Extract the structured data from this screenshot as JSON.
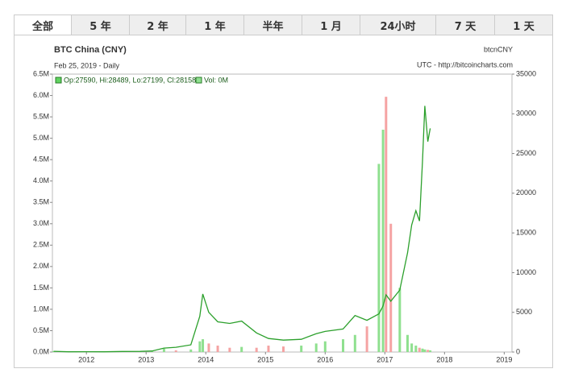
{
  "tabs": [
    "全部",
    "5 年",
    "2 年",
    "1 年",
    "半年",
    "1 月",
    "24小时",
    "7 天",
    "1 天"
  ],
  "chart_data": {
    "type": "price-volume",
    "title": "BTC China (CNY)",
    "subtitle": "Feb 25, 2019 - Daily",
    "symbol": "btcnCNY",
    "source": "UTC - http://bitcoincharts.com",
    "ohlc_legend": "Op:27590, Hi:28489, Lo:27199, Cl:28158",
    "volume_legend": "Vol: 0M",
    "x": [
      2011.45,
      2011.7,
      2012.0,
      2012.3,
      2012.6,
      2012.9,
      2013.1,
      2013.3,
      2013.5,
      2013.75,
      2013.9,
      2013.95,
      2014.05,
      2014.2,
      2014.4,
      2014.6,
      2014.85,
      2015.05,
      2015.3,
      2015.6,
      2015.85,
      2016.0,
      2016.3,
      2016.5,
      2016.7,
      2016.9,
      2016.97,
      2017.02,
      2017.1,
      2017.25,
      2017.38,
      2017.45,
      2017.52,
      2017.58,
      2017.63,
      2017.67,
      2017.72,
      2017.76
    ],
    "price": {
      "color": "#2ca02c",
      "axis": "y2",
      "values": [
        90,
        30,
        40,
        35,
        70,
        80,
        130,
        500,
        600,
        900,
        4500,
        7300,
        5000,
        3800,
        3600,
        3900,
        2400,
        1700,
        1500,
        1600,
        2300,
        2600,
        2900,
        4600,
        4000,
        4800,
        5800,
        7200,
        6400,
        7800,
        12500,
        16000,
        17800,
        16500,
        24000,
        31000,
        26500,
        28158
      ]
    },
    "volume": {
      "values": [
        20000,
        10000,
        5000,
        8000,
        10000,
        15000,
        20000,
        80000,
        40000,
        60000,
        250000,
        300000,
        200000,
        150000,
        100000,
        120000,
        100000,
        150000,
        130000,
        150000,
        200000,
        250000,
        300000,
        400000,
        600000,
        4400000,
        5200000,
        5970000,
        3000000,
        1500000,
        400000,
        200000,
        150000,
        100000,
        80000,
        60000,
        50000,
        40000
      ],
      "colors": [
        "#8fe08f",
        "#f5a3a3",
        "#8fe08f",
        "#f5a3a3",
        "#8fe08f",
        "#8fe08f",
        "#8fe08f",
        "#8fe08f",
        "#f5a3a3",
        "#8fe08f",
        "#8fe08f",
        "#8fe08f",
        "#f5a3a3",
        "#f5a3a3",
        "#f5a3a3",
        "#8fe08f",
        "#f5a3a3",
        "#f5a3a3",
        "#f5a3a3",
        "#8fe08f",
        "#8fe08f",
        "#8fe08f",
        "#8fe08f",
        "#8fe08f",
        "#f5a3a3",
        "#8fe08f",
        "#8fe08f",
        "#f5a3a3",
        "#f5a3a3",
        "#8fe08f",
        "#8fe08f",
        "#8fe08f",
        "#8fe08f",
        "#f5a3a3",
        "#8fe08f",
        "#8fe08f",
        "#f5a3a3",
        "#8fe08f"
      ]
    },
    "xlim": [
      2011.43,
      2019.13
    ],
    "xticks": [
      2012,
      2013,
      2014,
      2015,
      2016,
      2017,
      2018,
      2019
    ],
    "ylim": [
      0,
      6500000
    ],
    "yticks": [
      {
        "value": 0,
        "label": "0.0M"
      },
      {
        "value": 500000,
        "label": "0.5M"
      },
      {
        "value": 1000000,
        "label": "1.0M"
      },
      {
        "value": 1500000,
        "label": "1.5M"
      },
      {
        "value": 2000000,
        "label": "2.0M"
      },
      {
        "value": 2500000,
        "label": "2.5M"
      },
      {
        "value": 3000000,
        "label": "3.0M"
      },
      {
        "value": 3500000,
        "label": "3.5M"
      },
      {
        "value": 4000000,
        "label": "4.0M"
      },
      {
        "value": 4500000,
        "label": "4.5M"
      },
      {
        "value": 5000000,
        "label": "5.0M"
      },
      {
        "value": 5500000,
        "label": "5.5M"
      },
      {
        "value": 6000000,
        "label": "6.0M"
      },
      {
        "value": 6500000,
        "label": "6.5M"
      }
    ],
    "y2lim": [
      0,
      35000
    ],
    "y2ticks": [
      0,
      5000,
      10000,
      15000,
      20000,
      25000,
      30000,
      35000
    ]
  }
}
